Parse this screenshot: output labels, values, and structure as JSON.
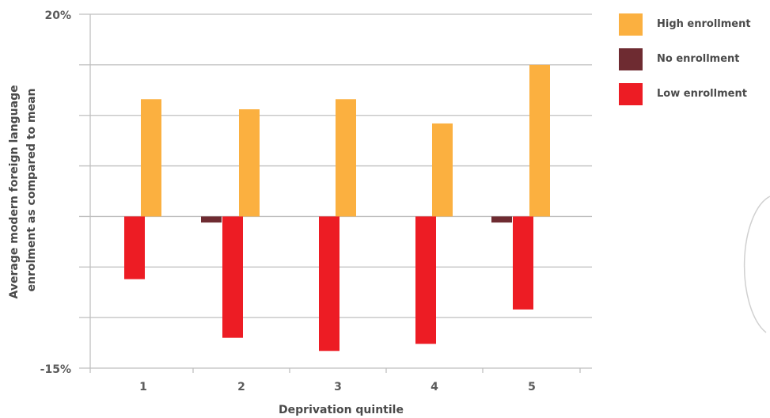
{
  "chart_data": {
    "type": "bar",
    "title": "",
    "xlabel": "Deprivation quintile",
    "ylabel_lines": [
      "Average modern foreign language",
      "enrolment as compared to mean"
    ],
    "categories": [
      "1",
      "2",
      "3",
      "4",
      "5"
    ],
    "ylim": [
      -15,
      20
    ],
    "y_gridlines": [
      -15,
      -10,
      -5,
      0,
      5,
      10,
      15,
      20
    ],
    "y_tick_labels": [
      {
        "value": 20,
        "label": "20%"
      },
      {
        "value": -15,
        "label": "-15%"
      }
    ],
    "grid": true,
    "legend_position": "top-right",
    "series": [
      {
        "name": "High enrollment",
        "color": "#FBB040",
        "values": [
          11.6,
          10.6,
          11.6,
          9.2,
          15.0
        ]
      },
      {
        "name": "No enrollment",
        "color": "#6E2B31",
        "values": [
          0,
          -0.6,
          0,
          0,
          -0.6
        ]
      },
      {
        "name": "Low enrollment",
        "color": "#ED1C24",
        "values": [
          -6.2,
          -12.0,
          -13.3,
          -12.6,
          -9.2
        ]
      }
    ]
  }
}
